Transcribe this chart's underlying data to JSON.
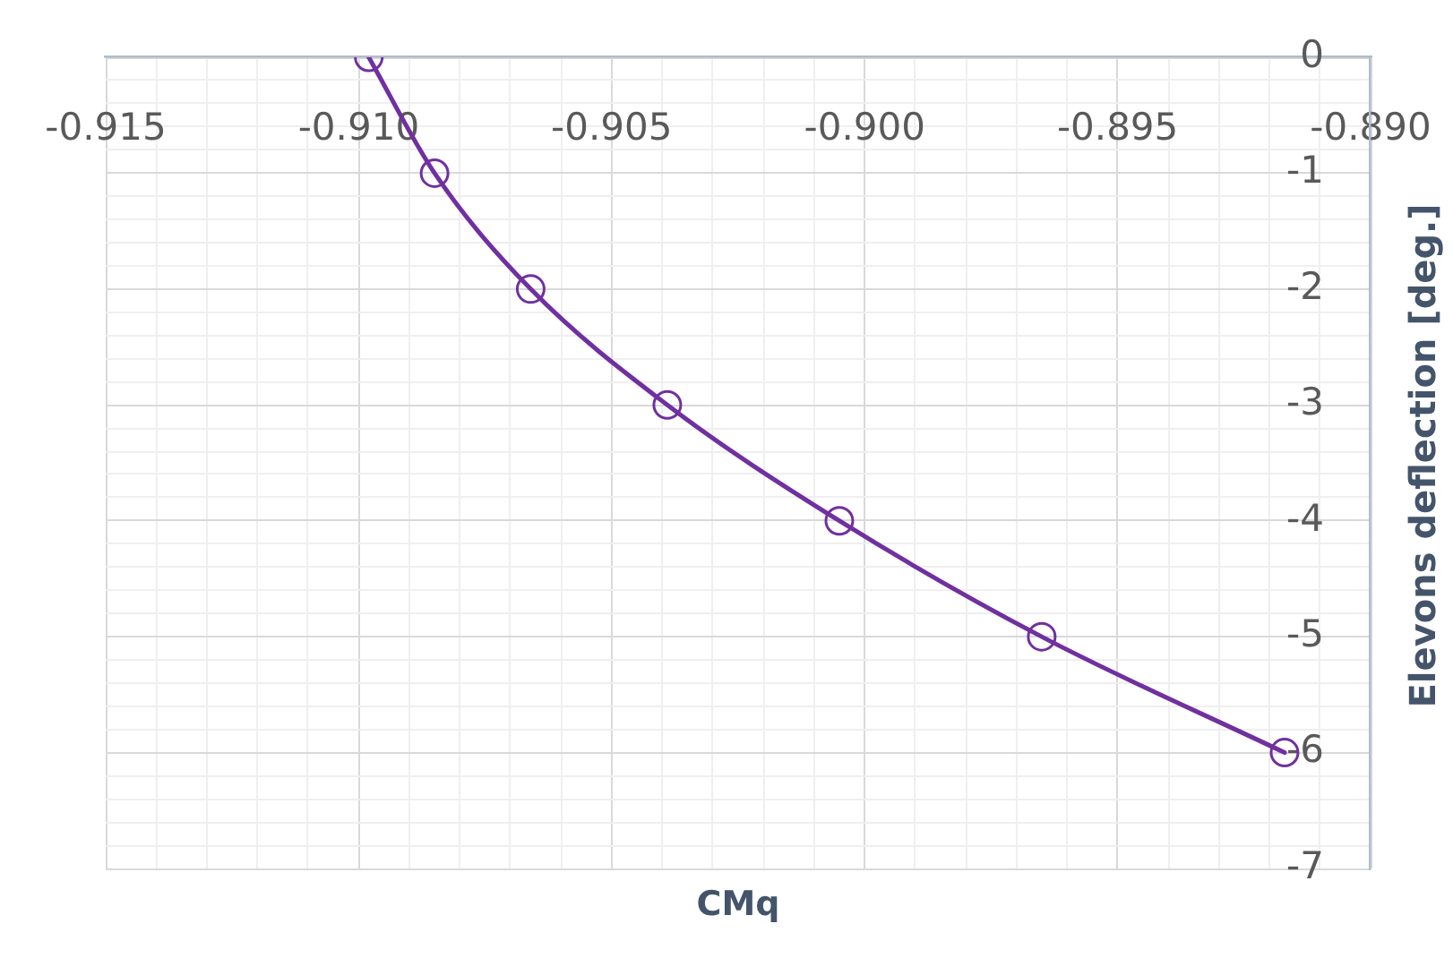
{
  "chart_data": {
    "type": "line",
    "xlabel": "CMq",
    "ylabel": "Elevons deflection [deg.]",
    "x": [
      -0.9098,
      -0.9085,
      -0.9066,
      -0.9039,
      -0.9005,
      -0.8965,
      -0.8917
    ],
    "series": [
      {
        "color": "#7030a0",
        "values": [
          0,
          -1,
          -2,
          -3,
          -4,
          -5,
          -6
        ]
      }
    ],
    "xlim": [
      -0.915,
      -0.89
    ],
    "xticks": [
      -0.915,
      {
        "value": -0.914,
        "label": null
      },
      {
        "value": -0.913,
        "label": null
      },
      {
        "value": -0.912,
        "label": null
      },
      {
        "value": -0.911,
        "label": null
      },
      {
        "value": -0.91,
        "label": "-0.910"
      },
      {
        "value": -0.909,
        "label": null
      },
      {
        "value": -0.908,
        "label": null
      },
      {
        "value": -0.907,
        "label": null
      },
      {
        "value": -0.906,
        "label": null
      },
      -0.905,
      {
        "value": -0.904,
        "label": null
      },
      {
        "value": -0.903,
        "label": null
      },
      {
        "value": -0.902,
        "label": null
      },
      {
        "value": -0.901,
        "label": null
      },
      {
        "value": -0.9,
        "label": "-0.900"
      },
      {
        "value": -0.899,
        "label": null
      },
      {
        "value": -0.898,
        "label": null
      },
      {
        "value": -0.897,
        "label": null
      },
      {
        "value": -0.896,
        "label": null
      },
      -0.895,
      {
        "value": -0.894,
        "label": null
      },
      {
        "value": -0.893,
        "label": null
      },
      {
        "value": -0.892,
        "label": null
      },
      {
        "value": -0.891,
        "label": null
      },
      {
        "value": -0.89,
        "label": "-0.890"
      }
    ],
    "ylim": [
      -7,
      0
    ],
    "yticks": [
      -7,
      {
        "value": -6.8,
        "label": null
      },
      {
        "value": -6.6,
        "label": null
      },
      {
        "value": -6.4,
        "label": null
      },
      {
        "value": -6.2,
        "label": null
      },
      -6,
      {
        "value": -5.8,
        "label": null
      },
      {
        "value": -5.6,
        "label": null
      },
      {
        "value": -5.4,
        "label": null
      },
      {
        "value": -5.2,
        "label": null
      },
      -5,
      {
        "value": -4.8,
        "label": null
      },
      {
        "value": -4.6,
        "label": null
      },
      {
        "value": -4.4,
        "label": null
      },
      {
        "value": -4.2,
        "label": null
      },
      -4,
      {
        "value": -3.8,
        "label": null
      },
      {
        "value": -3.6,
        "label": null
      },
      {
        "value": -3.4,
        "label": null
      },
      {
        "value": -3.2,
        "label": null
      },
      -3,
      {
        "value": -2.8,
        "label": null
      },
      {
        "value": -2.6,
        "label": null
      },
      {
        "value": -2.4,
        "label": null
      },
      {
        "value": -2.2,
        "label": null
      },
      -2,
      {
        "value": -1.8,
        "label": null
      },
      {
        "value": -1.6,
        "label": null
      },
      {
        "value": -1.4,
        "label": null
      },
      {
        "value": -1.2,
        "label": null
      },
      -1,
      {
        "value": -0.8,
        "label": null
      },
      {
        "value": -0.6,
        "label": null
      },
      {
        "value": -0.4,
        "label": null
      },
      {
        "value": -0.2,
        "label": null
      },
      0
    ],
    "grid": true,
    "legend": false,
    "marker": "circle",
    "line_style": "solid"
  }
}
